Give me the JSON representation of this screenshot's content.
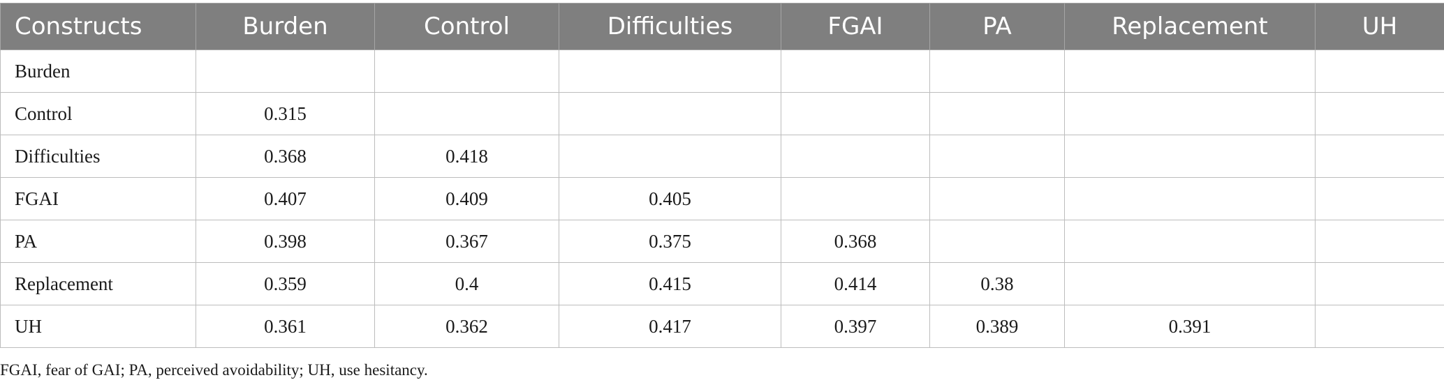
{
  "table": {
    "headers": [
      "Constructs",
      "Burden",
      "Control",
      "Difficulties",
      "FGAI",
      "PA",
      "Replacement",
      "UH"
    ],
    "rows": [
      [
        "Burden",
        "",
        "",
        "",
        "",
        "",
        "",
        ""
      ],
      [
        "Control",
        "0.315",
        "",
        "",
        "",
        "",
        "",
        ""
      ],
      [
        "Difficulties",
        "0.368",
        "0.418",
        "",
        "",
        "",
        "",
        ""
      ],
      [
        "FGAI",
        "0.407",
        "0.409",
        "0.405",
        "",
        "",
        "",
        ""
      ],
      [
        "PA",
        "0.398",
        "0.367",
        "0.375",
        "0.368",
        "",
        "",
        ""
      ],
      [
        "Replacement",
        "0.359",
        "0.4",
        "0.415",
        "0.414",
        "0.38",
        "",
        ""
      ],
      [
        "UH",
        "0.361",
        "0.362",
        "0.417",
        "0.397",
        "0.389",
        "0.391",
        ""
      ]
    ]
  },
  "footnote": "FGAI, fear of GAI; PA, perceived avoidability; UH, use hesitancy."
}
